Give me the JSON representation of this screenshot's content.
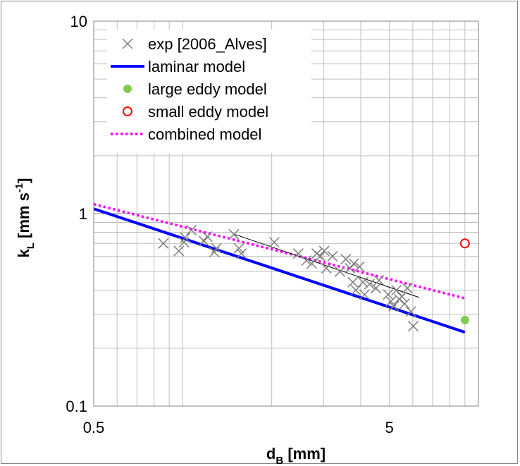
{
  "chart_data": {
    "type": "scatter",
    "xscale": "log",
    "yscale": "log",
    "xlim": [
      0.5,
      10
    ],
    "ylim": [
      0.1,
      10
    ],
    "grid": true,
    "xticks": [
      {
        "value": 0.5,
        "label": "0.5"
      },
      {
        "value": 5,
        "label": "5"
      }
    ],
    "yticks": [
      {
        "value": 0.1,
        "label": "0.1"
      },
      {
        "value": 1,
        "label": "1"
      },
      {
        "value": 10,
        "label": "10"
      }
    ],
    "xlabel": {
      "main": "d",
      "sub": "B",
      "rest": " [mm]"
    },
    "ylabel": {
      "main": "k",
      "sub": "L",
      "rest": " [mm s",
      "sup": "-1",
      "end": "]"
    },
    "legend_position": "top-left",
    "colors": {
      "exp": "#7f7f7f",
      "laminar": "#0000ff",
      "large_eddy": "#7fcc4c",
      "small_eddy": "#ff0000",
      "combined": "#ff00ff",
      "trend": "#000000"
    },
    "series": [
      {
        "key": "exp",
        "name": "exp [2006_Alves]",
        "marker": "x",
        "points": [
          [
            0.86,
            0.7
          ],
          [
            0.97,
            0.64
          ],
          [
            1.01,
            0.71
          ],
          [
            1.02,
            0.75
          ],
          [
            1.07,
            0.82
          ],
          [
            1.18,
            0.72
          ],
          [
            1.21,
            0.76
          ],
          [
            1.28,
            0.63
          ],
          [
            1.3,
            0.66
          ],
          [
            1.49,
            0.78
          ],
          [
            1.55,
            0.66
          ],
          [
            1.58,
            0.62
          ],
          [
            2.04,
            0.71
          ],
          [
            2.46,
            0.62
          ],
          [
            2.62,
            0.57
          ],
          [
            2.73,
            0.55
          ],
          [
            2.84,
            0.62
          ],
          [
            2.92,
            0.6
          ],
          [
            3.01,
            0.64
          ],
          [
            3.06,
            0.52
          ],
          [
            3.21,
            0.6
          ],
          [
            3.4,
            0.5
          ],
          [
            3.56,
            0.58
          ],
          [
            3.68,
            0.52
          ],
          [
            3.76,
            0.44
          ],
          [
            3.79,
            0.55
          ],
          [
            3.85,
            0.4
          ],
          [
            3.96,
            0.53
          ],
          [
            4.07,
            0.44
          ],
          [
            4.12,
            0.38
          ],
          [
            4.28,
            0.43
          ],
          [
            4.5,
            0.41
          ],
          [
            4.61,
            0.45
          ],
          [
            4.95,
            0.38
          ],
          [
            5.06,
            0.35
          ],
          [
            5.17,
            0.33
          ],
          [
            5.28,
            0.4
          ],
          [
            5.39,
            0.36
          ],
          [
            5.51,
            0.37
          ],
          [
            5.63,
            0.34
          ],
          [
            5.75,
            0.41
          ],
          [
            5.91,
            0.31
          ],
          [
            6.02,
            0.26
          ]
        ]
      },
      {
        "key": "laminar",
        "name": "laminar model",
        "marker": "line",
        "points": [
          [
            0.5,
            1.06
          ],
          [
            9.0,
            0.242
          ]
        ]
      },
      {
        "key": "large_eddy",
        "name": "large eddy model",
        "marker": "dot",
        "points": [
          [
            9.0,
            0.28
          ]
        ]
      },
      {
        "key": "small_eddy",
        "name": "small eddy model",
        "marker": "circle",
        "points": [
          [
            9.0,
            0.7
          ]
        ]
      },
      {
        "key": "combined",
        "name": "combined model",
        "marker": "dotted",
        "points": [
          [
            0.5,
            1.12
          ],
          [
            9.0,
            0.363
          ]
        ]
      },
      {
        "key": "trend",
        "name": "",
        "marker": "thin-line",
        "points": [
          [
            1.5,
            0.78
          ],
          [
            6.3,
            0.367
          ]
        ]
      }
    ]
  }
}
